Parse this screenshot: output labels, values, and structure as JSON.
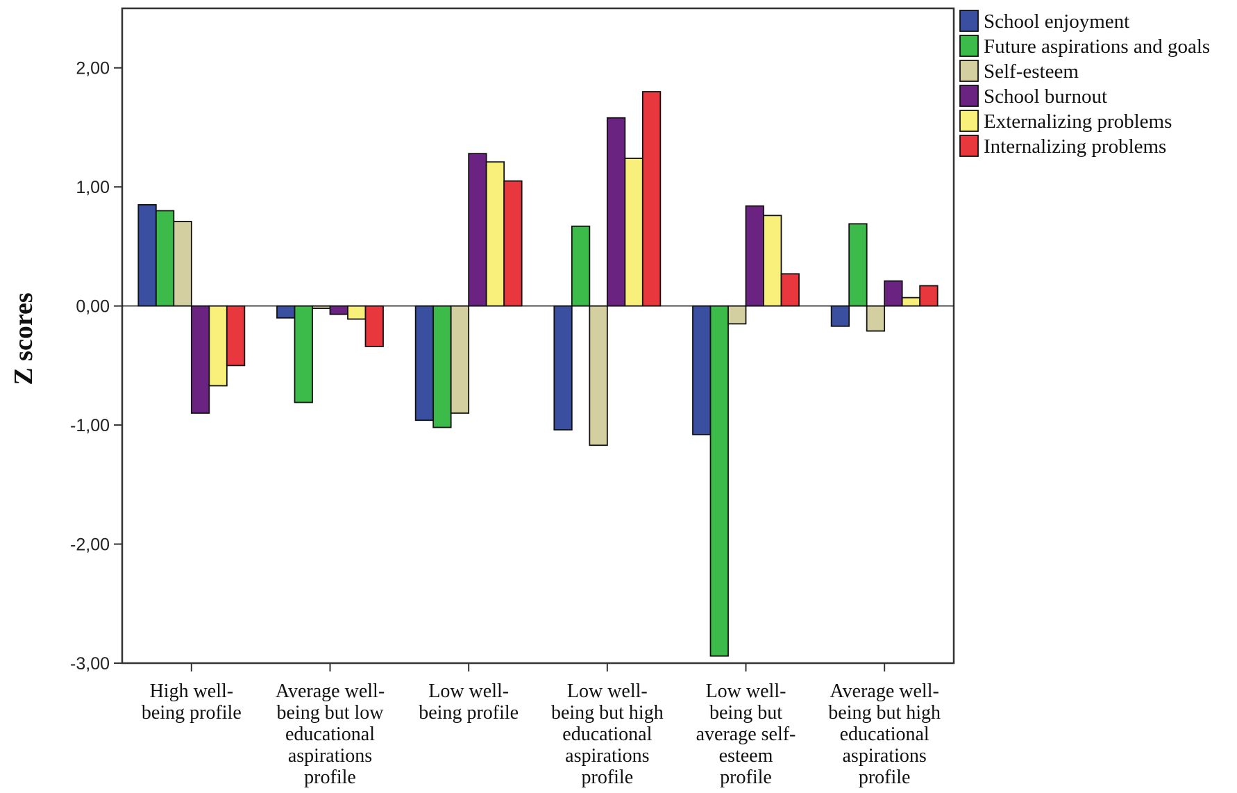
{
  "chart_data": {
    "type": "bar",
    "ylabel": "Z scores",
    "xlabel": "",
    "ylim": [
      -3,
      2.5
    ],
    "y_ticks": [
      -3,
      -2,
      -1,
      0,
      1,
      2
    ],
    "y_tick_labels": [
      "-3,00",
      "-2,00",
      "-1,00",
      "0,00",
      "1,00",
      "2,00"
    ],
    "legend_position": "right-top",
    "categories": [
      [
        "High well-",
        "being profile"
      ],
      [
        "Average well-",
        "being but low",
        "educational",
        "aspirations",
        "profile"
      ],
      [
        "Low well-",
        "being profile"
      ],
      [
        "Low well-",
        "being but high",
        "educational",
        "aspirations",
        "profile"
      ],
      [
        "Low well-",
        "being but",
        "average self-",
        "esteem",
        "profile"
      ],
      [
        "Average well-",
        "being but high",
        "educational",
        "aspirations",
        "profile"
      ]
    ],
    "series": [
      {
        "name": "School enjoyment",
        "color": "#3a4fa0",
        "values": [
          0.85,
          -0.1,
          -0.96,
          -1.04,
          -1.08,
          -0.17
        ]
      },
      {
        "name": "Future aspirations and goals",
        "color": "#3dbb4a",
        "values": [
          0.8,
          -0.81,
          -1.02,
          0.67,
          -2.94,
          0.69
        ]
      },
      {
        "name": "Self-esteem",
        "color": "#d4cfa0",
        "values": [
          0.71,
          -0.02,
          -0.9,
          -1.17,
          -0.15,
          -0.21
        ]
      },
      {
        "name": "School burnout",
        "color": "#6a2380",
        "values": [
          -0.9,
          -0.07,
          1.28,
          1.58,
          0.84,
          0.21
        ]
      },
      {
        "name": "Externalizing problems",
        "color": "#f8f07a",
        "values": [
          -0.67,
          -0.11,
          1.21,
          1.24,
          0.76,
          0.07
        ]
      },
      {
        "name": "Internalizing problems",
        "color": "#e8373d",
        "values": [
          -0.5,
          -0.34,
          1.05,
          1.8,
          0.27,
          0.17
        ]
      }
    ]
  }
}
